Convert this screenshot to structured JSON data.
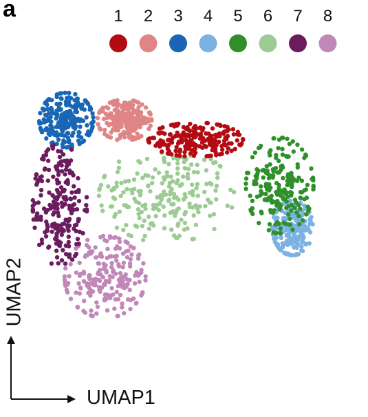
{
  "panel": {
    "letter": "a"
  },
  "chart_data": {
    "type": "scatter",
    "title": "",
    "xlabel": "UMAP1",
    "ylabel": "UMAP2",
    "axes_ticks": false,
    "grid": false,
    "legend": {
      "placement": "top",
      "orientation": "horizontal"
    },
    "series": [
      {
        "name": "1",
        "color": "#b40a12",
        "region": {
          "center": [
            0.52,
            0.72
          ],
          "spread": [
            0.14,
            0.05
          ]
        }
      },
      {
        "name": "2",
        "color": "#df8585",
        "region": {
          "center": [
            0.3,
            0.78
          ],
          "spread": [
            0.08,
            0.06
          ]
        }
      },
      {
        "name": "3",
        "color": "#1866b4",
        "region": {
          "center": [
            0.12,
            0.78
          ],
          "spread": [
            0.08,
            0.08
          ]
        }
      },
      {
        "name": "4",
        "color": "#7cb1e3",
        "region": {
          "center": [
            0.82,
            0.45
          ],
          "spread": [
            0.06,
            0.08
          ]
        }
      },
      {
        "name": "5",
        "color": "#2f902a",
        "region": {
          "center": [
            0.78,
            0.58
          ],
          "spread": [
            0.1,
            0.14
          ]
        }
      },
      {
        "name": "6",
        "color": "#9ccb94",
        "region": {
          "center": [
            0.43,
            0.55
          ],
          "spread": [
            0.2,
            0.14
          ]
        }
      },
      {
        "name": "7",
        "color": "#6b1c5e",
        "region": {
          "center": [
            0.1,
            0.52
          ],
          "spread": [
            0.08,
            0.18
          ]
        }
      },
      {
        "name": "8",
        "color": "#c088b8",
        "region": {
          "center": [
            0.24,
            0.3
          ],
          "spread": [
            0.12,
            0.12
          ]
        }
      }
    ]
  }
}
